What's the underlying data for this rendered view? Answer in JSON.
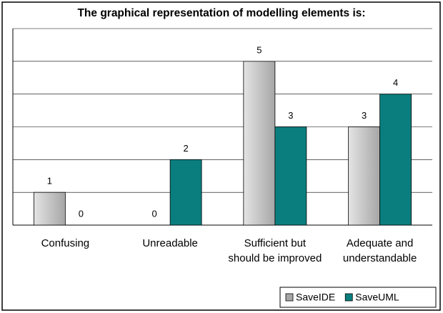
{
  "chart_data": {
    "type": "bar",
    "title": "The graphical representation of modelling elements is:",
    "categories": [
      "Confusing",
      "Unreadable",
      "Sufficient but should be improved",
      "Adequate and understandable"
    ],
    "series": [
      {
        "name": "SaveIDE",
        "color": "#a6a6a6",
        "values": [
          1,
          0,
          5,
          3
        ]
      },
      {
        "name": "SaveUML",
        "color": "#0a7e7e",
        "values": [
          0,
          2,
          3,
          4
        ]
      }
    ],
    "ylim": [
      0,
      6
    ],
    "yticks": [
      0,
      1,
      2,
      3,
      4,
      5,
      6
    ],
    "grid": true,
    "legend": "bottom-right"
  }
}
